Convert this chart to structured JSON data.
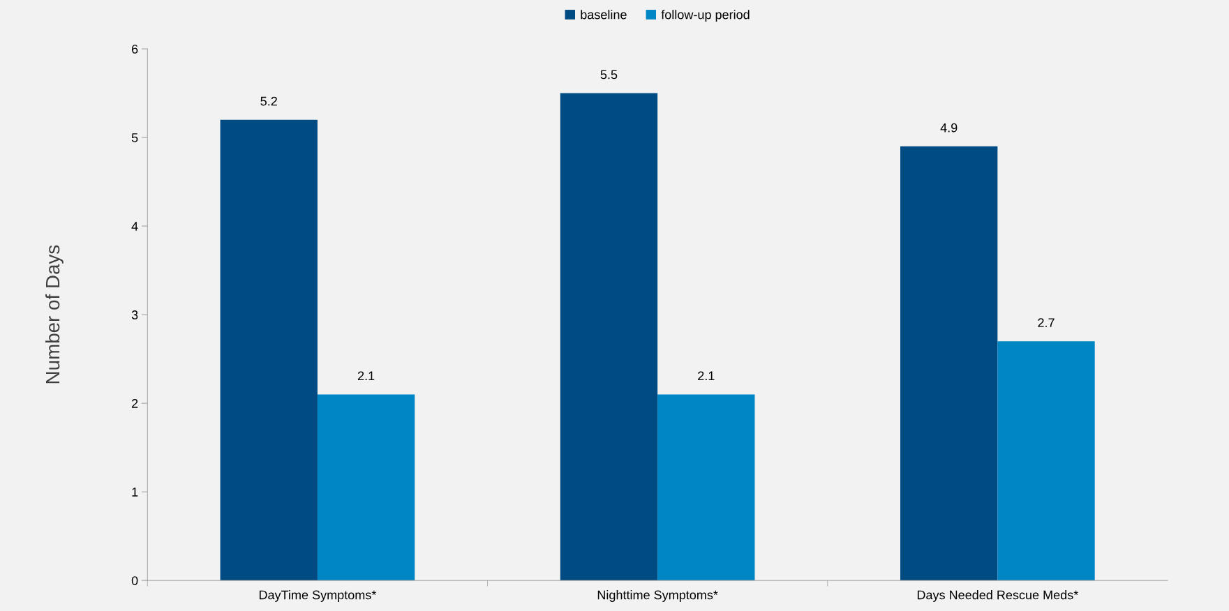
{
  "chart_data": {
    "type": "bar",
    "ylabel": "Number of Days",
    "categories": [
      "DayTime Symptoms*",
      "Nighttime Symptoms*",
      "Days Needed Rescue Meds*"
    ],
    "series": [
      {
        "name": "baseline",
        "color": "#004c82",
        "values": [
          5.2,
          5.5,
          4.9
        ]
      },
      {
        "name": "follow-up period",
        "color": "#0086c5",
        "values": [
          2.1,
          2.1,
          2.7
        ]
      }
    ],
    "ylim": [
      0,
      6
    ],
    "yticks": [
      0,
      1,
      2,
      3,
      4,
      5,
      6
    ],
    "grid": false,
    "legend": "top",
    "data_labels": true
  }
}
